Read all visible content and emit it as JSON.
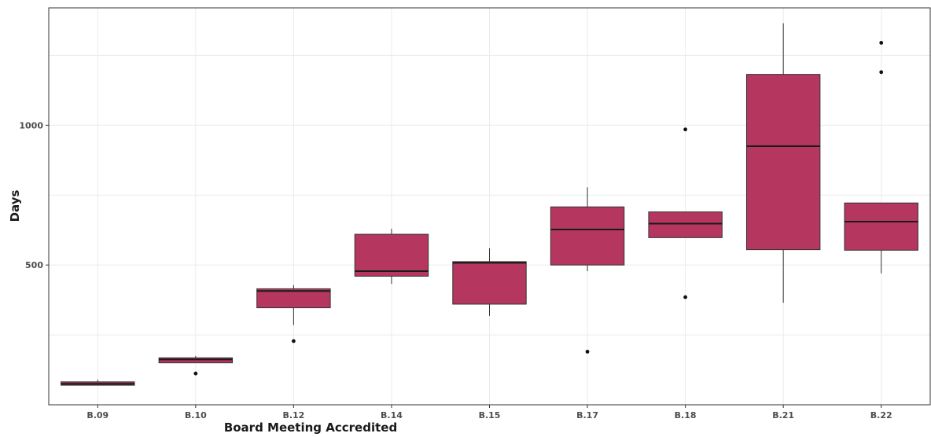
{
  "chart_data": {
    "type": "boxplot",
    "xlabel": "Board Meeting Accredited",
    "ylabel": "Days",
    "ylim": [
      0,
      1420
    ],
    "yticks": [
      500,
      1000
    ],
    "grid": true,
    "legend": "none",
    "colors": {
      "box_fill": "#b5375f",
      "box_outline": "#333333",
      "median": "#1a1a1a",
      "grid": "#ebebeb",
      "outlier": "#111111"
    },
    "categories": [
      "B.09",
      "B.10",
      "B.12",
      "B.14",
      "B.15",
      "B.17",
      "B.18",
      "B.21",
      "B.22"
    ],
    "boxes": [
      {
        "category": "B.09",
        "min": 70,
        "q1": 70,
        "median": 75,
        "q3": 82,
        "max": 90,
        "outliers": []
      },
      {
        "category": "B.10",
        "min": 150,
        "q1": 150,
        "median": 162,
        "q3": 168,
        "max": 175,
        "outliers": [
          112
        ]
      },
      {
        "category": "B.12",
        "min": 285,
        "q1": 347,
        "median": 407,
        "q3": 415,
        "max": 428,
        "outliers": [
          228
        ]
      },
      {
        "category": "B.14",
        "min": 432,
        "q1": 460,
        "median": 478,
        "q3": 610,
        "max": 630,
        "outliers": []
      },
      {
        "category": "B.15",
        "min": 318,
        "q1": 360,
        "median": 508,
        "q3": 512,
        "max": 560,
        "outliers": []
      },
      {
        "category": "B.17",
        "min": 478,
        "q1": 500,
        "median": 627,
        "q3": 708,
        "max": 778,
        "outliers": [
          190
        ]
      },
      {
        "category": "B.18",
        "min": 598,
        "q1": 598,
        "median": 648,
        "q3": 690,
        "max": 690,
        "outliers": [
          985,
          385
        ]
      },
      {
        "category": "B.21",
        "min": 365,
        "q1": 555,
        "median": 925,
        "q3": 1182,
        "max": 1365,
        "outliers": []
      },
      {
        "category": "B.22",
        "min": 470,
        "q1": 553,
        "median": 655,
        "q3": 722,
        "max": 722,
        "outliers": [
          1295,
          1190
        ]
      }
    ]
  }
}
